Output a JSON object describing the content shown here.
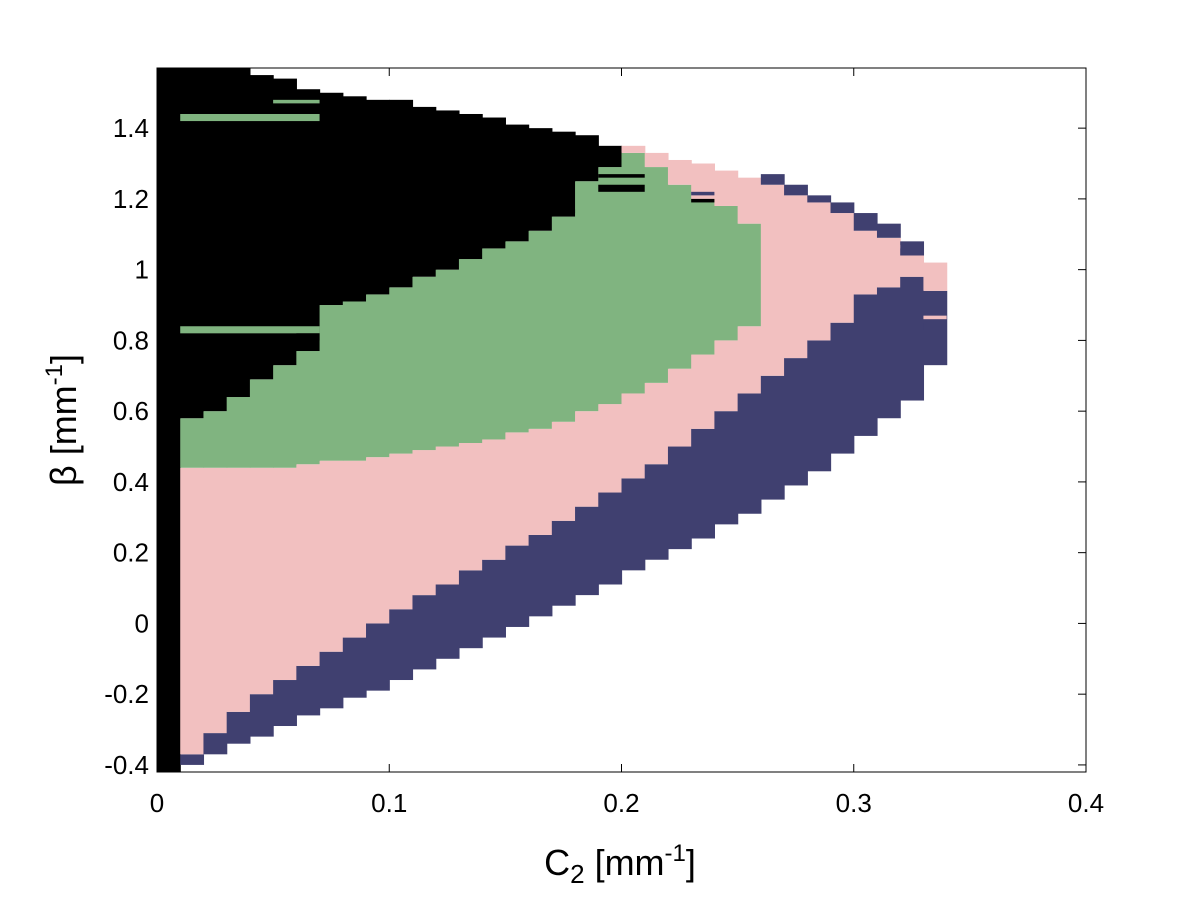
{
  "chart_data": {
    "type": "heatmap",
    "title": "",
    "xlabel": {
      "prefix": "C",
      "subscript": "2",
      "unit_open": " [mm",
      "unit_sup": "-1",
      "unit_close": "]"
    },
    "ylabel": {
      "symbol": "β",
      "unit_open": " [mm",
      "unit_sup": "-1",
      "unit_close": "]"
    },
    "xlim": [
      0,
      0.4
    ],
    "ylim": [
      -0.42,
      1.57
    ],
    "xticks": [
      0,
      0.1,
      0.2,
      0.3,
      0.4
    ],
    "xtick_labels": [
      "0",
      "0.1",
      "0.2",
      "0.3",
      "0.4"
    ],
    "yticks": [
      -0.4,
      -0.2,
      0,
      0.2,
      0.4,
      0.6,
      0.8,
      1,
      1.2,
      1.4
    ],
    "ytick_labels": [
      "-0.4",
      "-0.2",
      "0",
      "0.2",
      "0.4",
      "0.6",
      "0.8",
      "1",
      "1.2",
      "1.4"
    ],
    "grid": false,
    "legend": "none",
    "region_colors": {
      "black": "#000000",
      "green": "#80b480",
      "pink": "#f2c0c0",
      "navy": "#404070"
    },
    "column_width": 0.01,
    "columns": [
      {
        "x": 0.0,
        "bands": [
          [
            "black",
            -0.42,
            1.57
          ]
        ]
      },
      {
        "x": 0.01,
        "bands": [
          [
            "navy",
            -0.4,
            -0.37
          ],
          [
            "pink",
            -0.37,
            0.44
          ],
          [
            "green",
            0.44,
            0.58
          ],
          [
            "black",
            0.58,
            1.57
          ]
        ]
      },
      {
        "x": 0.02,
        "bands": [
          [
            "navy",
            -0.37,
            -0.31
          ],
          [
            "pink",
            -0.31,
            0.44
          ],
          [
            "green",
            0.44,
            0.6
          ],
          [
            "black",
            0.6,
            1.57
          ]
        ]
      },
      {
        "x": 0.03,
        "bands": [
          [
            "navy",
            -0.34,
            -0.25
          ],
          [
            "pink",
            -0.25,
            0.44
          ],
          [
            "green",
            0.44,
            0.64
          ],
          [
            "black",
            0.64,
            1.57
          ]
        ]
      },
      {
        "x": 0.04,
        "bands": [
          [
            "navy",
            -0.32,
            -0.2
          ],
          [
            "pink",
            -0.2,
            0.44
          ],
          [
            "green",
            0.44,
            0.69
          ],
          [
            "black",
            0.69,
            1.55
          ]
        ]
      },
      {
        "x": 0.05,
        "bands": [
          [
            "navy",
            -0.29,
            -0.16
          ],
          [
            "pink",
            -0.16,
            0.44
          ],
          [
            "green",
            0.44,
            0.73
          ],
          [
            "black",
            0.73,
            1.54
          ]
        ]
      },
      {
        "x": 0.06,
        "bands": [
          [
            "navy",
            -0.26,
            -0.12
          ],
          [
            "pink",
            -0.12,
            0.45
          ],
          [
            "green",
            0.45,
            0.77
          ],
          [
            "black",
            0.77,
            1.51
          ]
        ]
      },
      {
        "x": 0.07,
        "bands": [
          [
            "navy",
            -0.24,
            -0.08
          ],
          [
            "pink",
            -0.08,
            0.46
          ],
          [
            "green",
            0.46,
            0.9
          ],
          [
            "black",
            0.9,
            1.5
          ]
        ]
      },
      {
        "x": 0.08,
        "bands": [
          [
            "navy",
            -0.21,
            -0.04
          ],
          [
            "pink",
            -0.04,
            0.46
          ],
          [
            "green",
            0.46,
            0.91
          ],
          [
            "black",
            0.91,
            1.49
          ]
        ]
      },
      {
        "x": 0.09,
        "bands": [
          [
            "navy",
            -0.19,
            0.0
          ],
          [
            "pink",
            0.0,
            0.47
          ],
          [
            "green",
            0.47,
            0.93
          ],
          [
            "black",
            0.93,
            1.48
          ]
        ]
      },
      {
        "x": 0.1,
        "bands": [
          [
            "navy",
            -0.16,
            0.04
          ],
          [
            "pink",
            0.04,
            0.48
          ],
          [
            "green",
            0.48,
            0.95
          ],
          [
            "black",
            0.95,
            1.48
          ]
        ]
      },
      {
        "x": 0.11,
        "bands": [
          [
            "navy",
            -0.13,
            0.08
          ],
          [
            "pink",
            0.08,
            0.49
          ],
          [
            "green",
            0.49,
            0.98
          ],
          [
            "black",
            0.98,
            1.46
          ]
        ]
      },
      {
        "x": 0.12,
        "bands": [
          [
            "navy",
            -0.1,
            0.11
          ],
          [
            "pink",
            0.11,
            0.5
          ],
          [
            "green",
            0.5,
            1.0
          ],
          [
            "black",
            1.0,
            1.45
          ]
        ]
      },
      {
        "x": 0.13,
        "bands": [
          [
            "navy",
            -0.07,
            0.15
          ],
          [
            "pink",
            0.15,
            0.51
          ],
          [
            "green",
            0.51,
            1.03
          ],
          [
            "black",
            1.03,
            1.44
          ]
        ]
      },
      {
        "x": 0.14,
        "bands": [
          [
            "navy",
            -0.04,
            0.18
          ],
          [
            "pink",
            0.18,
            0.52
          ],
          [
            "green",
            0.52,
            1.06
          ],
          [
            "black",
            1.06,
            1.43
          ]
        ]
      },
      {
        "x": 0.15,
        "bands": [
          [
            "navy",
            -0.01,
            0.22
          ],
          [
            "pink",
            0.22,
            0.54
          ],
          [
            "green",
            0.54,
            1.08
          ],
          [
            "black",
            1.08,
            1.41
          ]
        ]
      },
      {
        "x": 0.16,
        "bands": [
          [
            "navy",
            0.02,
            0.25
          ],
          [
            "pink",
            0.25,
            0.55
          ],
          [
            "green",
            0.55,
            1.11
          ],
          [
            "black",
            1.11,
            1.4
          ]
        ]
      },
      {
        "x": 0.17,
        "bands": [
          [
            "navy",
            0.05,
            0.29
          ],
          [
            "pink",
            0.29,
            0.57
          ],
          [
            "green",
            0.57,
            1.15
          ],
          [
            "black",
            1.15,
            1.39
          ]
        ]
      },
      {
        "x": 0.18,
        "bands": [
          [
            "navy",
            0.08,
            0.33
          ],
          [
            "pink",
            0.33,
            0.6
          ],
          [
            "green",
            0.6,
            1.25
          ],
          [
            "black",
            1.25,
            1.38
          ]
        ]
      },
      {
        "x": 0.19,
        "bands": [
          [
            "navy",
            0.11,
            0.37
          ],
          [
            "pink",
            0.37,
            0.62
          ],
          [
            "green",
            0.62,
            1.29
          ],
          [
            "black",
            1.29,
            1.35
          ]
        ]
      },
      {
        "x": 0.2,
        "bands": [
          [
            "navy",
            0.15,
            0.41
          ],
          [
            "pink",
            0.41,
            0.65
          ],
          [
            "green",
            0.65,
            1.33
          ],
          [
            "pink",
            1.33,
            1.35
          ]
        ]
      },
      {
        "x": 0.21,
        "bands": [
          [
            "navy",
            0.18,
            0.45
          ],
          [
            "pink",
            0.45,
            0.68
          ],
          [
            "green",
            0.68,
            1.29
          ],
          [
            "pink",
            1.29,
            1.33
          ]
        ]
      },
      {
        "x": 0.22,
        "bands": [
          [
            "navy",
            0.21,
            0.5
          ],
          [
            "pink",
            0.5,
            0.72
          ],
          [
            "green",
            0.72,
            1.24
          ],
          [
            "pink",
            1.24,
            1.31
          ]
        ]
      },
      {
        "x": 0.23,
        "bands": [
          [
            "navy",
            0.24,
            0.55
          ],
          [
            "pink",
            0.55,
            0.76
          ],
          [
            "green",
            0.76,
            1.2
          ],
          [
            "pink",
            1.2,
            1.3
          ]
        ]
      },
      {
        "x": 0.24,
        "bands": [
          [
            "navy",
            0.28,
            0.6
          ],
          [
            "pink",
            0.6,
            0.8
          ],
          [
            "green",
            0.8,
            1.18
          ],
          [
            "pink",
            1.18,
            1.28
          ]
        ]
      },
      {
        "x": 0.25,
        "bands": [
          [
            "navy",
            0.31,
            0.65
          ],
          [
            "pink",
            0.65,
            0.84
          ],
          [
            "green",
            0.84,
            1.13
          ],
          [
            "pink",
            1.13,
            1.26
          ]
        ]
      },
      {
        "x": 0.26,
        "bands": [
          [
            "navy",
            0.35,
            0.7
          ],
          [
            "pink",
            0.7,
            1.24
          ],
          [
            "navy",
            1.24,
            1.27
          ]
        ]
      },
      {
        "x": 0.27,
        "bands": [
          [
            "navy",
            0.39,
            0.75
          ],
          [
            "pink",
            0.75,
            1.21
          ],
          [
            "navy",
            1.21,
            1.24
          ]
        ]
      },
      {
        "x": 0.28,
        "bands": [
          [
            "navy",
            0.43,
            0.8
          ],
          [
            "pink",
            0.8,
            1.19
          ],
          [
            "navy",
            1.19,
            1.21
          ]
        ]
      },
      {
        "x": 0.29,
        "bands": [
          [
            "navy",
            0.48,
            0.85
          ],
          [
            "pink",
            0.85,
            1.16
          ],
          [
            "navy",
            1.16,
            1.19
          ]
        ]
      },
      {
        "x": 0.3,
        "bands": [
          [
            "navy",
            0.53,
            0.93
          ],
          [
            "pink",
            0.93,
            1.11
          ],
          [
            "navy",
            1.11,
            1.16
          ]
        ]
      },
      {
        "x": 0.31,
        "bands": [
          [
            "navy",
            0.58,
            0.95
          ],
          [
            "pink",
            0.95,
            1.09
          ],
          [
            "navy",
            1.09,
            1.13
          ]
        ]
      },
      {
        "x": 0.32,
        "bands": [
          [
            "navy",
            0.63,
            0.98
          ],
          [
            "pink",
            0.98,
            1.04
          ],
          [
            "navy",
            1.04,
            1.08
          ]
        ]
      },
      {
        "x": 0.33,
        "bands": [
          [
            "navy",
            0.73,
            0.94
          ],
          [
            "pink",
            0.94,
            1.02
          ]
        ]
      }
    ],
    "streaks": [
      [
        "green",
        0.01,
        0.07,
        1.42,
        1.44
      ],
      [
        "green",
        0.05,
        0.07,
        1.47,
        1.48
      ],
      [
        "green",
        0.01,
        0.07,
        0.82,
        0.84
      ],
      [
        "black",
        0.06,
        0.07,
        0.8,
        0.82
      ],
      [
        "black",
        0.17,
        0.18,
        1.16,
        1.17
      ],
      [
        "black",
        0.19,
        0.21,
        1.22,
        1.24
      ],
      [
        "black",
        0.19,
        0.21,
        1.26,
        1.27
      ],
      [
        "black",
        0.23,
        0.24,
        1.19,
        1.2
      ],
      [
        "navy",
        0.23,
        0.24,
        1.21,
        1.22
      ],
      [
        "pink",
        0.31,
        0.32,
        1.06,
        1.07
      ],
      [
        "pink",
        0.31,
        0.33,
        0.98,
        0.99
      ],
      [
        "pink",
        0.33,
        0.34,
        0.86,
        0.87
      ],
      [
        "navy",
        0.33,
        0.34,
        0.83,
        0.85
      ]
    ]
  }
}
